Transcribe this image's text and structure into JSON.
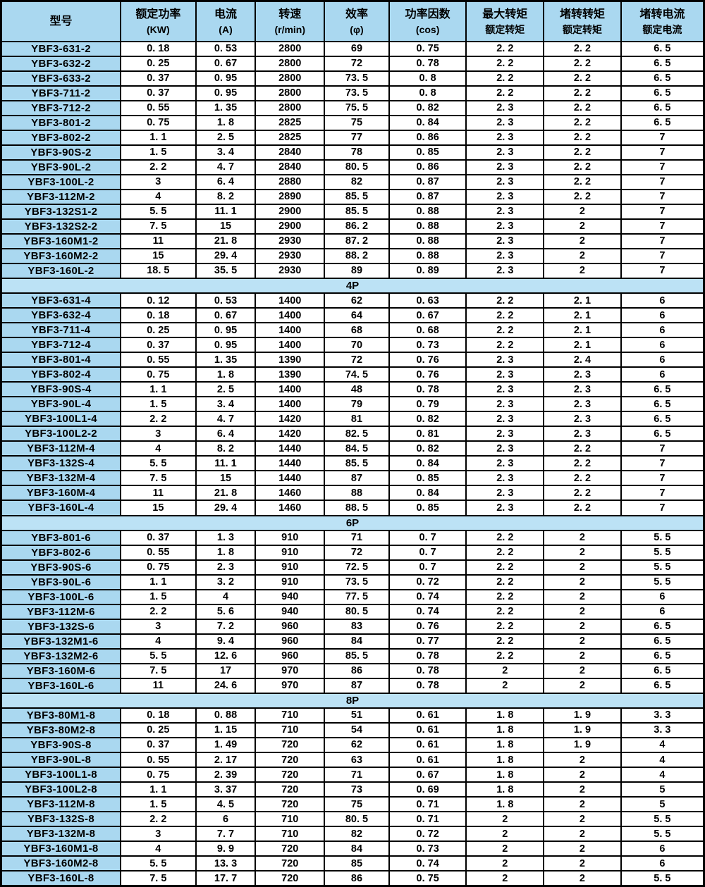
{
  "table": {
    "colors": {
      "header_bg": "#aad8f0",
      "model_bg": "#aad8f0",
      "divider_bg": "#bce2f5",
      "cell_bg": "#ffffff",
      "border": "#000000"
    },
    "columns": [
      {
        "line1": "型号",
        "line2": ""
      },
      {
        "line1": "额定功率",
        "line2": "(KW)"
      },
      {
        "line1": "电流",
        "line2": "(A)"
      },
      {
        "line1": "转速",
        "line2": "(r/min)"
      },
      {
        "line1": "效率",
        "line2": "(φ)"
      },
      {
        "line1": "功率因数",
        "line2": "(cos)"
      },
      {
        "line1": "最大转矩",
        "line2": "额定转矩"
      },
      {
        "line1": "堵转转矩",
        "line2": "额定转矩"
      },
      {
        "line1": "堵转电流",
        "line2": "额定电流"
      }
    ],
    "sections": [
      {
        "label": null,
        "rows": [
          {
            "model": "YBF3-631-2",
            "values": [
              "0. 18",
              "0. 53",
              "2800",
              "69",
              "0. 75",
              "2. 2",
              "2. 2",
              "6. 5"
            ]
          },
          {
            "model": "YBF3-632-2",
            "values": [
              "0. 25",
              "0. 67",
              "2800",
              "72",
              "0. 78",
              "2. 2",
              "2. 2",
              "6. 5"
            ]
          },
          {
            "model": "YBF3-633-2",
            "values": [
              "0. 37",
              "0. 95",
              "2800",
              "73. 5",
              "0. 8",
              "2. 2",
              "2. 2",
              "6. 5"
            ]
          },
          {
            "model": "YBF3-711-2",
            "values": [
              "0. 37",
              "0. 95",
              "2800",
              "73. 5",
              "0. 8",
              "2. 2",
              "2. 2",
              "6. 5"
            ]
          },
          {
            "model": "YBF3-712-2",
            "values": [
              "0. 55",
              "1. 35",
              "2800",
              "75. 5",
              "0. 82",
              "2. 3",
              "2. 2",
              "6. 5"
            ]
          },
          {
            "model": "YBF3-801-2",
            "values": [
              "0. 75",
              "1. 8",
              "2825",
              "75",
              "0. 84",
              "2. 3",
              "2. 2",
              "6. 5"
            ]
          },
          {
            "model": "YBF3-802-2",
            "values": [
              "1. 1",
              "2. 5",
              "2825",
              "77",
              "0. 86",
              "2. 3",
              "2. 2",
              "7"
            ]
          },
          {
            "model": "YBF3-90S-2",
            "values": [
              "1. 5",
              "3. 4",
              "2840",
              "78",
              "0. 85",
              "2. 3",
              "2. 2",
              "7"
            ]
          },
          {
            "model": "YBF3-90L-2",
            "values": [
              "2. 2",
              "4. 7",
              "2840",
              "80. 5",
              "0. 86",
              "2. 3",
              "2. 2",
              "7"
            ]
          },
          {
            "model": "YBF3-100L-2",
            "values": [
              "3",
              "6. 4",
              "2880",
              "82",
              "0. 87",
              "2. 3",
              "2. 2",
              "7"
            ]
          },
          {
            "model": "YBF3-112M-2",
            "values": [
              "4",
              "8. 2",
              "2890",
              "85. 5",
              "0. 87",
              "2. 3",
              "2. 2",
              "7"
            ]
          },
          {
            "model": "YBF3-132S1-2",
            "values": [
              "5. 5",
              "11. 1",
              "2900",
              "85. 5",
              "0. 88",
              "2. 3",
              "2",
              "7"
            ]
          },
          {
            "model": "YBF3-132S2-2",
            "values": [
              "7. 5",
              "15",
              "2900",
              "86. 2",
              "0. 88",
              "2. 3",
              "2",
              "7"
            ]
          },
          {
            "model": "YBF3-160M1-2",
            "values": [
              "11",
              "21. 8",
              "2930",
              "87. 2",
              "0. 88",
              "2. 3",
              "2",
              "7"
            ]
          },
          {
            "model": "YBF3-160M2-2",
            "values": [
              "15",
              "29. 4",
              "2930",
              "88. 2",
              "0. 88",
              "2. 3",
              "2",
              "7"
            ]
          },
          {
            "model": "YBF3-160L-2",
            "values": [
              "18. 5",
              "35. 5",
              "2930",
              "89",
              "0. 89",
              "2. 3",
              "2",
              "7"
            ]
          }
        ]
      },
      {
        "label": "4P",
        "rows": [
          {
            "model": "YBF3-631-4",
            "values": [
              "0. 12",
              "0. 53",
              "1400",
              "62",
              "0. 63",
              "2. 2",
              "2. 1",
              "6"
            ]
          },
          {
            "model": "YBF3-632-4",
            "values": [
              "0. 18",
              "0. 67",
              "1400",
              "64",
              "0. 67",
              "2. 2",
              "2. 1",
              "6"
            ]
          },
          {
            "model": "YBF3-711-4",
            "values": [
              "0. 25",
              "0. 95",
              "1400",
              "68",
              "0. 68",
              "2. 2",
              "2. 1",
              "6"
            ]
          },
          {
            "model": "YBF3-712-4",
            "values": [
              "0. 37",
              "0. 95",
              "1400",
              "70",
              "0. 73",
              "2. 2",
              "2. 1",
              "6"
            ]
          },
          {
            "model": "YBF3-801-4",
            "values": [
              "0. 55",
              "1. 35",
              "1390",
              "72",
              "0. 76",
              "2. 3",
              "2. 4",
              "6"
            ]
          },
          {
            "model": "YBF3-802-4",
            "values": [
              "0. 75",
              "1. 8",
              "1390",
              "74. 5",
              "0. 76",
              "2. 3",
              "2. 3",
              "6"
            ]
          },
          {
            "model": "YBF3-90S-4",
            "values": [
              "1. 1",
              "2. 5",
              "1400",
              "48",
              "0. 78",
              "2. 3",
              "2. 3",
              "6. 5"
            ]
          },
          {
            "model": "YBF3-90L-4",
            "values": [
              "1. 5",
              "3. 4",
              "1400",
              "79",
              "0. 79",
              "2. 3",
              "2. 3",
              "6. 5"
            ]
          },
          {
            "model": "YBF3-100L1-4",
            "values": [
              "2. 2",
              "4. 7",
              "1420",
              "81",
              "0. 82",
              "2. 3",
              "2. 3",
              "6. 5"
            ]
          },
          {
            "model": "YBF3-100L2-2",
            "values": [
              "3",
              "6. 4",
              "1420",
              "82. 5",
              "0. 81",
              "2. 3",
              "2. 3",
              "6. 5"
            ]
          },
          {
            "model": "YBF3-112M-4",
            "values": [
              "4",
              "8. 2",
              "1440",
              "84. 5",
              "0. 82",
              "2. 3",
              "2. 2",
              "7"
            ]
          },
          {
            "model": "YBF3-132S-4",
            "values": [
              "5. 5",
              "11. 1",
              "1440",
              "85. 5",
              "0. 84",
              "2. 3",
              "2. 2",
              "7"
            ]
          },
          {
            "model": "YBF3-132M-4",
            "values": [
              "7. 5",
              "15",
              "1440",
              "87",
              "0. 85",
              "2. 3",
              "2. 2",
              "7"
            ]
          },
          {
            "model": "YBF3-160M-4",
            "values": [
              "11",
              "21. 8",
              "1460",
              "88",
              "0. 84",
              "2. 3",
              "2. 2",
              "7"
            ]
          },
          {
            "model": "YBF3-160L-4",
            "values": [
              "15",
              "29. 4",
              "1460",
              "88. 5",
              "0. 85",
              "2. 3",
              "2. 2",
              "7"
            ]
          }
        ]
      },
      {
        "label": "6P",
        "rows": [
          {
            "model": "YBF3-801-6",
            "values": [
              "0. 37",
              "1. 3",
              "910",
              "71",
              "0. 7",
              "2. 2",
              "2",
              "5. 5"
            ]
          },
          {
            "model": "YBF3-802-6",
            "values": [
              "0. 55",
              "1. 8",
              "910",
              "72",
              "0. 7",
              "2. 2",
              "2",
              "5. 5"
            ]
          },
          {
            "model": "YBF3-90S-6",
            "values": [
              "0. 75",
              "2. 3",
              "910",
              "72. 5",
              "0. 7",
              "2. 2",
              "2",
              "5. 5"
            ]
          },
          {
            "model": "YBF3-90L-6",
            "values": [
              "1. 1",
              "3. 2",
              "910",
              "73. 5",
              "0. 72",
              "2. 2",
              "2",
              "5. 5"
            ]
          },
          {
            "model": "YBF3-100L-6",
            "values": [
              "1. 5",
              "4",
              "940",
              "77. 5",
              "0. 74",
              "2. 2",
              "2",
              "6"
            ]
          },
          {
            "model": "YBF3-112M-6",
            "values": [
              "2. 2",
              "5. 6",
              "940",
              "80. 5",
              "0. 74",
              "2. 2",
              "2",
              "6"
            ]
          },
          {
            "model": "YBF3-132S-6",
            "values": [
              "3",
              "7. 2",
              "960",
              "83",
              "0. 76",
              "2. 2",
              "2",
              "6. 5"
            ]
          },
          {
            "model": "YBF3-132M1-6",
            "values": [
              "4",
              "9. 4",
              "960",
              "84",
              "0. 77",
              "2. 2",
              "2",
              "6. 5"
            ]
          },
          {
            "model": "YBF3-132M2-6",
            "values": [
              "5. 5",
              "12. 6",
              "960",
              "85. 5",
              "0. 78",
              "2. 2",
              "2",
              "6. 5"
            ]
          },
          {
            "model": "YBF3-160M-6",
            "values": [
              "7. 5",
              "17",
              "970",
              "86",
              "0. 78",
              "2",
              "2",
              "6. 5"
            ]
          },
          {
            "model": "YBF3-160L-6",
            "values": [
              "11",
              "24. 6",
              "970",
              "87",
              "0. 78",
              "2",
              "2",
              "6. 5"
            ]
          }
        ]
      },
      {
        "label": "8P",
        "rows": [
          {
            "model": "YBF3-80M1-8",
            "values": [
              "0. 18",
              "0. 88",
              "710",
              "51",
              "0. 61",
              "1. 8",
              "1. 9",
              "3. 3"
            ]
          },
          {
            "model": "YBF3-80M2-8",
            "values": [
              "0. 25",
              "1. 15",
              "710",
              "54",
              "0. 61",
              "1. 8",
              "1. 9",
              "3. 3"
            ]
          },
          {
            "model": "YBF3-90S-8",
            "values": [
              "0. 37",
              "1. 49",
              "720",
              "62",
              "0. 61",
              "1. 8",
              "1. 9",
              "4"
            ]
          },
          {
            "model": "YBF3-90L-8",
            "values": [
              "0. 55",
              "2. 17",
              "720",
              "63",
              "0. 61",
              "1. 8",
              "2",
              "4"
            ]
          },
          {
            "model": "YBF3-100L1-8",
            "values": [
              "0. 75",
              "2. 39",
              "720",
              "71",
              "0. 67",
              "1. 8",
              "2",
              "4"
            ]
          },
          {
            "model": "YBF3-100L2-8",
            "values": [
              "1. 1",
              "3. 37",
              "720",
              "73",
              "0. 69",
              "1. 8",
              "2",
              "5"
            ]
          },
          {
            "model": "YBF3-112M-8",
            "values": [
              "1. 5",
              "4. 5",
              "720",
              "75",
              "0. 71",
              "1. 8",
              "2",
              "5"
            ]
          },
          {
            "model": "YBF3-132S-8",
            "values": [
              "2. 2",
              "6",
              "710",
              "80. 5",
              "0. 71",
              "2",
              "2",
              "5. 5"
            ]
          },
          {
            "model": "YBF3-132M-8",
            "values": [
              "3",
              "7. 7",
              "710",
              "82",
              "0. 72",
              "2",
              "2",
              "5. 5"
            ]
          },
          {
            "model": "YBF3-160M1-8",
            "values": [
              "4",
              "9. 9",
              "720",
              "84",
              "0. 73",
              "2",
              "2",
              "6"
            ]
          },
          {
            "model": "YBF3-160M2-8",
            "values": [
              "5. 5",
              "13. 3",
              "720",
              "85",
              "0. 74",
              "2",
              "2",
              "6"
            ]
          },
          {
            "model": "YBF3-160L-8",
            "values": [
              "7. 5",
              "17. 7",
              "720",
              "86",
              "0. 75",
              "2",
              "2",
              "5. 5"
            ]
          }
        ]
      }
    ]
  }
}
